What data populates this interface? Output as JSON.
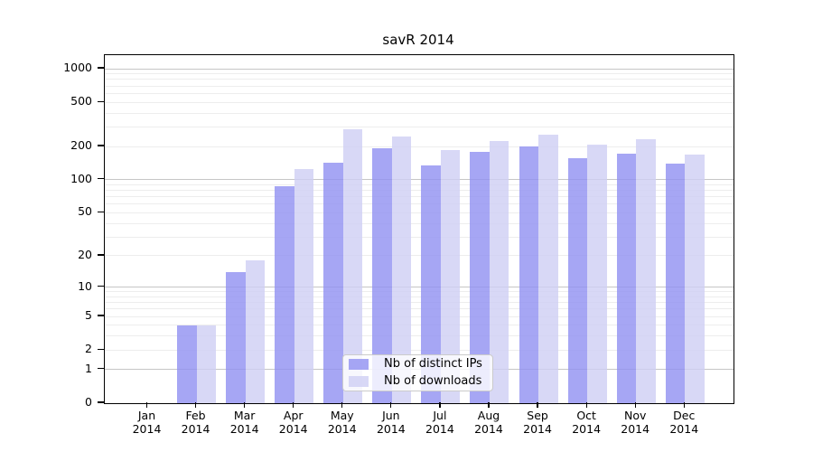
{
  "chart_data": {
    "type": "bar",
    "title": "savR 2014",
    "categories": [
      "Jan",
      "Feb",
      "Mar",
      "Apr",
      "May",
      "Jun",
      "Jul",
      "Aug",
      "Sep",
      "Oct",
      "Nov",
      "Dec"
    ],
    "year_label": "2014",
    "series": [
      {
        "name": "Nb of distinct IPs",
        "color": "#9090f1",
        "alpha": 0.8,
        "values": [
          0,
          4,
          14,
          87,
          142,
          191,
          136,
          180,
          200,
          156,
          171,
          141
        ]
      },
      {
        "name": "Nb of downloads",
        "color": "#cecef4",
        "alpha": 0.8,
        "values": [
          0,
          4,
          18,
          125,
          285,
          244,
          187,
          226,
          256,
          206,
          232,
          170
        ]
      }
    ],
    "xlabel": "",
    "ylabel": "",
    "y_scale": "log10(1+x)",
    "y_ticks": [
      0,
      1,
      2,
      5,
      10,
      20,
      50,
      100,
      200,
      500,
      1000
    ],
    "y_major_gridlines": [
      1,
      10,
      100,
      1000
    ],
    "y_minor_gridlines": [
      2,
      3,
      4,
      5,
      6,
      7,
      8,
      9,
      20,
      30,
      40,
      50,
      60,
      70,
      80,
      90,
      200,
      300,
      400,
      500,
      600,
      700,
      800,
      900
    ],
    "ylim": [
      0,
      1310
    ],
    "grid": true,
    "legend_position": "lower center"
  }
}
